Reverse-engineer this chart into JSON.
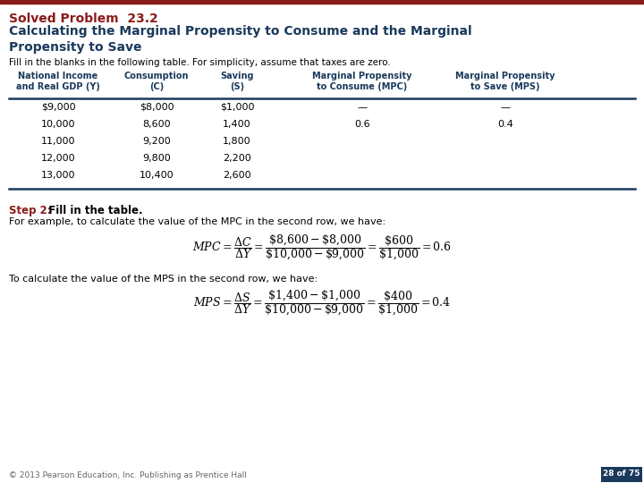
{
  "title_label": "Solved Problem  23.2",
  "title_color": "#8B1A1A",
  "subtitle": "Calculating the Marginal Propensity to Consume and the Marginal\nPropensity to Save",
  "subtitle_color": "#1A3A5C",
  "fill_text": "Fill in the blanks in the following table. For simplicity, assume that taxes are zero.",
  "fill_color": "#000000",
  "header_color": "#1A3A5C",
  "headers": [
    "National Income\nand Real GDP (Y)",
    "Consumption\n(C)",
    "Saving\n(S)",
    "Marginal Propensity\nto Consume (MPC)",
    "Marginal Propensity\nto Save (MPS)"
  ],
  "rows": [
    [
      "$9,000",
      "$8,000",
      "$1,000",
      "—",
      "—"
    ],
    [
      "10,000",
      "8,600",
      "1,400",
      "0.6",
      "0.4"
    ],
    [
      "11,000",
      "9,200",
      "1,800",
      "",
      ""
    ],
    [
      "12,000",
      "9,800",
      "2,200",
      "",
      ""
    ],
    [
      "13,000",
      "10,400",
      "2,600",
      "",
      ""
    ]
  ],
  "step2_label": "Step 2:",
  "step2_color": "#8B1A1A",
  "step2_rest": "  Fill in the table.",
  "step2_desc": "For example, to calculate the value of the MPC in the second row, we have:",
  "mps_desc": "To calculate the value of the MPS in the second row, we have:",
  "footer": "© 2013 Pearson Education, Inc. Publishing as Prentice Hall",
  "page_label": "28 of 75",
  "page_bg": "#1A3A5C",
  "page_color": "#FFFFFF",
  "top_bar_color": "#8B1A1A",
  "bg_color": "#FFFFFF",
  "table_line_color": "#1A3A5C"
}
